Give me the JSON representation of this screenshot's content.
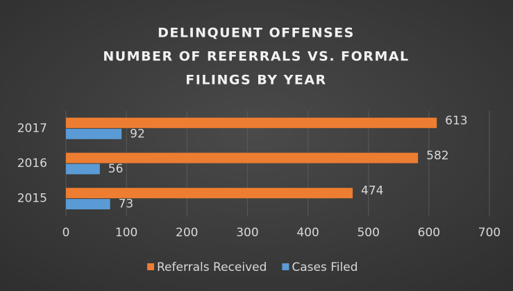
{
  "chart_data": {
    "type": "hbar",
    "title": [
      "DELINQUENT OFFENSES",
      "NUMBER OF REFERRALS VS. FORMAL",
      "FILINGS BY YEAR"
    ],
    "categories": [
      "2015",
      "2016",
      "2017"
    ],
    "series": [
      {
        "name": "Referrals Received",
        "color": "#ed7d31",
        "values": [
          474,
          582,
          613
        ]
      },
      {
        "name": "Cases Filed",
        "color": "#5b9bd5",
        "values": [
          73,
          56,
          92
        ]
      }
    ],
    "xlim": [
      0,
      700
    ],
    "xticks": [
      0,
      100,
      200,
      300,
      400,
      500,
      600,
      700
    ],
    "grid": true,
    "legend": "bottom"
  }
}
